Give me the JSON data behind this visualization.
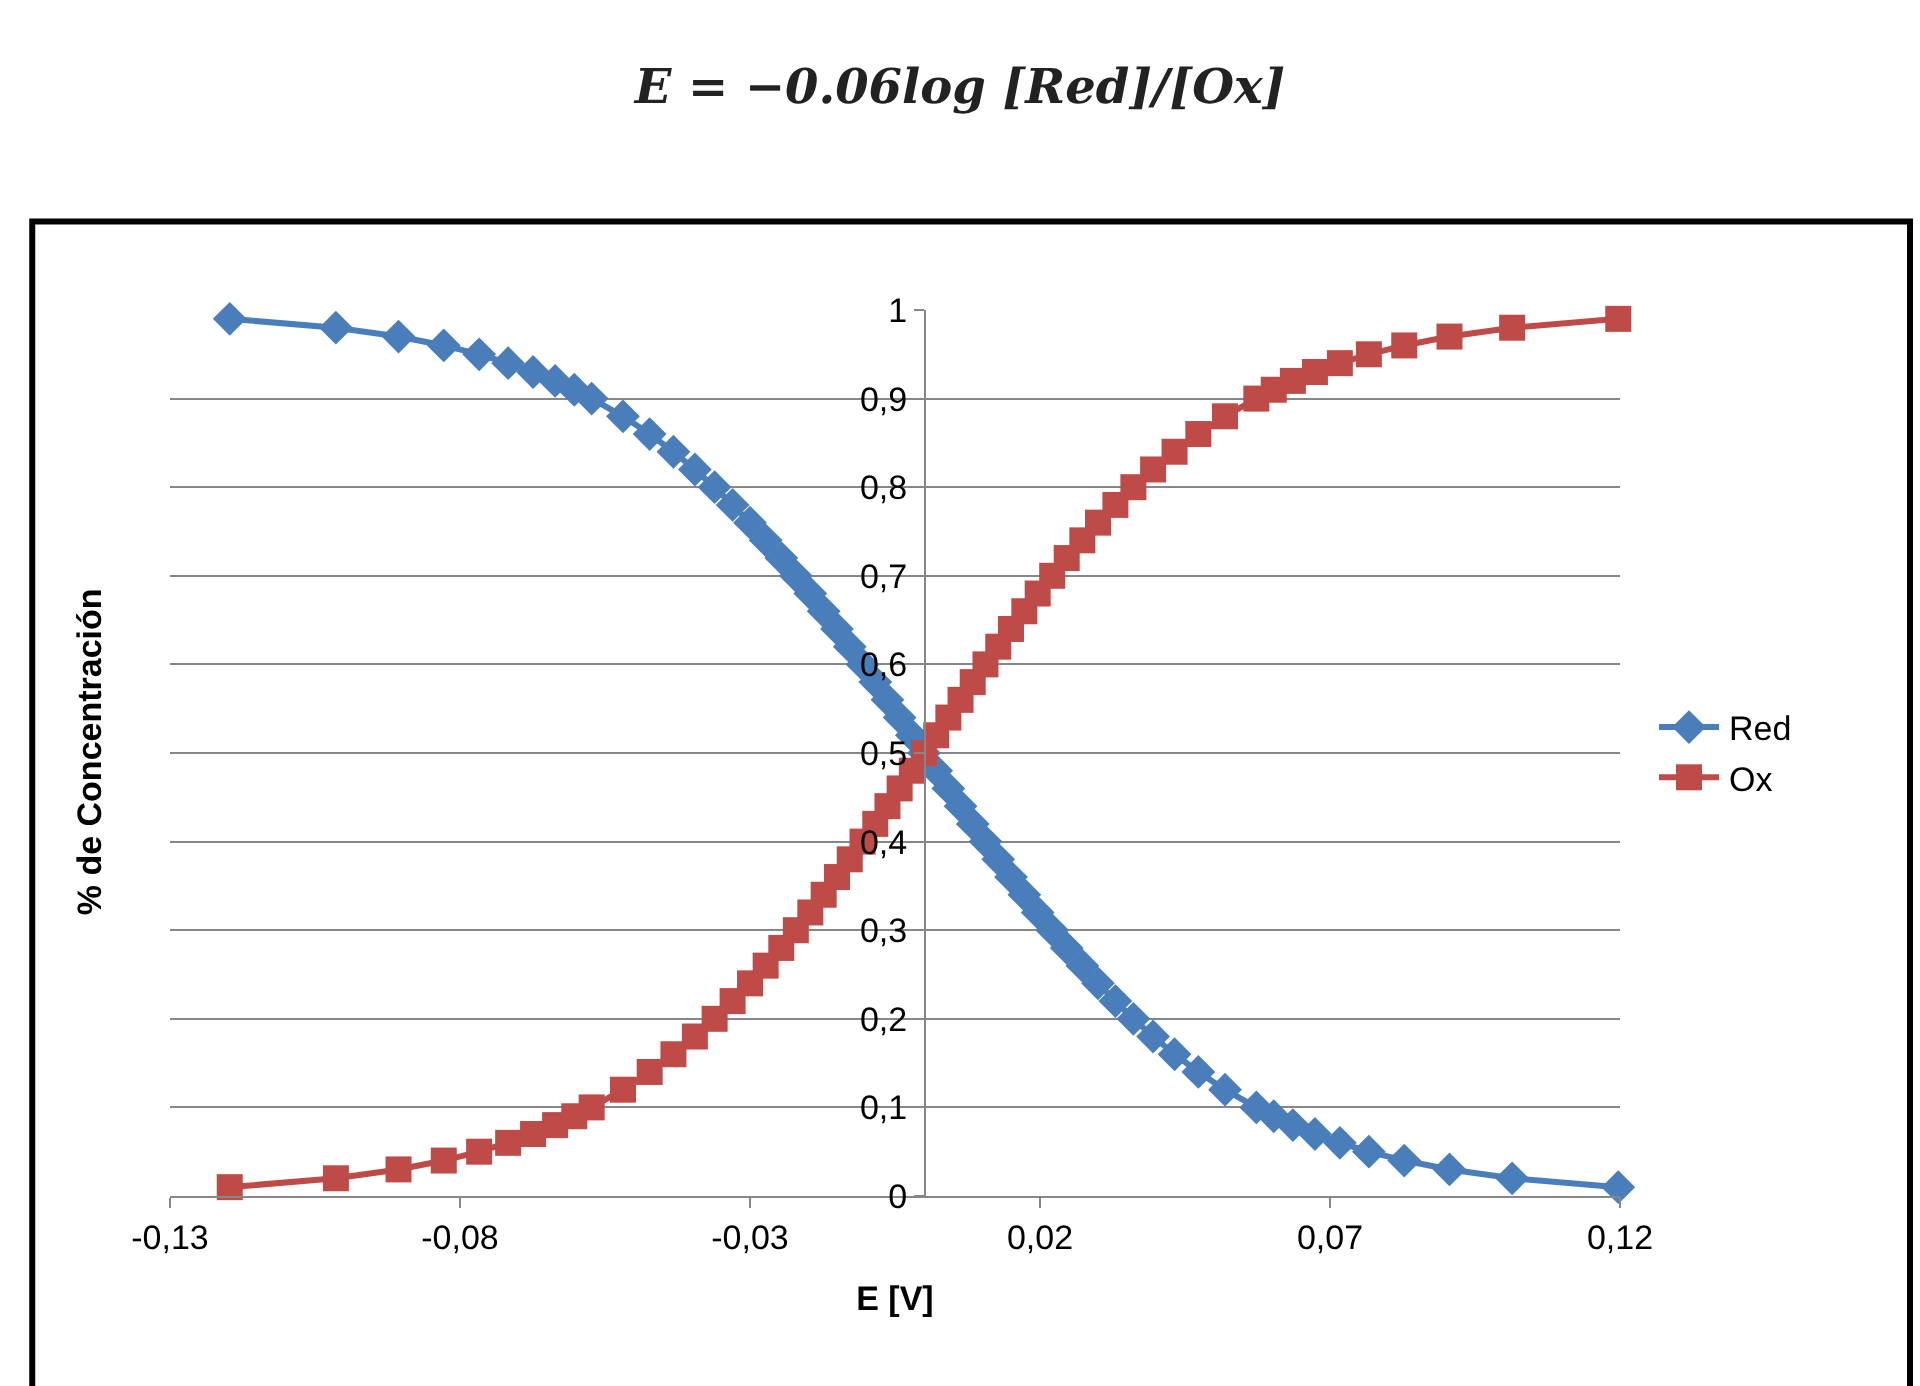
{
  "chart_data": {
    "type": "line",
    "title": "E = −0.06log [Red]/[Ox]",
    "xlabel": "E [V]",
    "ylabel": "% de Concentración",
    "x": [
      -0.1197,
      -0.1014,
      -0.0906,
      -0.0828,
      -0.0767,
      -0.0717,
      -0.0674,
      -0.0636,
      -0.0603,
      -0.0573,
      -0.0519,
      -0.0473,
      -0.0432,
      -0.0395,
      -0.0361,
      -0.033,
      -0.03,
      -0.0273,
      -0.0246,
      -0.0221,
      -0.0196,
      -0.0173,
      -0.015,
      -0.0128,
      -0.0106,
      -0.0084,
      -0.0063,
      -0.0042,
      -0.0021,
      0,
      0.0021,
      0.0042,
      0.0063,
      0.0084,
      0.0106,
      0.0128,
      0.015,
      0.0173,
      0.0196,
      0.0221,
      0.0246,
      0.0273,
      0.03,
      0.033,
      0.0361,
      0.0395,
      0.0432,
      0.0473,
      0.0519,
      0.0573,
      0.0603,
      0.0636,
      0.0674,
      0.0717,
      0.0767,
      0.0828,
      0.0906,
      0.1014,
      0.1197
    ],
    "series": [
      {
        "name": "Red",
        "color": "#4a7ebb",
        "marker": "diamond",
        "values": [
          0.99,
          0.98,
          0.97,
          0.96,
          0.95,
          0.94,
          0.93,
          0.92,
          0.91,
          0.9,
          0.88,
          0.86,
          0.84,
          0.82,
          0.8,
          0.78,
          0.76,
          0.74,
          0.72,
          0.7,
          0.68,
          0.66,
          0.64,
          0.62,
          0.6,
          0.58,
          0.56,
          0.54,
          0.52,
          0.5,
          0.48,
          0.46,
          0.44,
          0.42,
          0.4,
          0.38,
          0.36,
          0.34,
          0.32,
          0.3,
          0.28,
          0.26,
          0.24,
          0.22,
          0.2,
          0.18,
          0.16,
          0.14,
          0.12,
          0.1,
          0.09,
          0.08,
          0.07,
          0.06,
          0.05,
          0.04,
          0.03,
          0.02,
          0.01
        ]
      },
      {
        "name": "Ox",
        "color": "#be4b48",
        "marker": "square",
        "values": [
          0.01,
          0.02,
          0.03,
          0.04,
          0.05,
          0.06,
          0.07,
          0.08,
          0.09,
          0.1,
          0.12,
          0.14,
          0.16,
          0.18,
          0.2,
          0.22,
          0.24,
          0.26,
          0.28,
          0.3,
          0.32,
          0.34,
          0.36,
          0.38,
          0.4,
          0.42,
          0.44,
          0.46,
          0.48,
          0.5,
          0.52,
          0.54,
          0.56,
          0.58,
          0.6,
          0.62,
          0.64,
          0.66,
          0.68,
          0.7,
          0.72,
          0.74,
          0.76,
          0.78,
          0.8,
          0.82,
          0.84,
          0.86,
          0.88,
          0.9,
          0.91,
          0.92,
          0.93,
          0.94,
          0.95,
          0.96,
          0.97,
          0.98,
          0.99
        ]
      }
    ],
    "xlim": [
      -0.13,
      0.12
    ],
    "xticks": [
      {
        "value": -0.13,
        "label": "-0,13"
      },
      {
        "value": -0.08,
        "label": "-0,08"
      },
      {
        "value": -0.03,
        "label": "-0,03"
      },
      {
        "value": 0.02,
        "label": "0,02"
      },
      {
        "value": 0.07,
        "label": "0,07"
      },
      {
        "value": 0.12,
        "label": "0,12"
      }
    ],
    "ylim": [
      0,
      1
    ],
    "yticks": [
      0,
      {
        "value": 0.1,
        "label": "0,1"
      },
      {
        "value": 0.2,
        "label": "0,2"
      },
      {
        "value": 0.3,
        "label": "0,3"
      },
      {
        "value": 0.4,
        "label": "0,4"
      },
      {
        "value": 0.5,
        "label": "0,5"
      },
      {
        "value": 0.6,
        "label": "0,6"
      },
      {
        "value": 0.7,
        "label": "0,7"
      },
      {
        "value": 0.8,
        "label": "0,8"
      },
      {
        "value": 0.9,
        "label": "0,9"
      },
      1
    ],
    "grid": "y",
    "legend": "right",
    "line_style": "solid"
  }
}
